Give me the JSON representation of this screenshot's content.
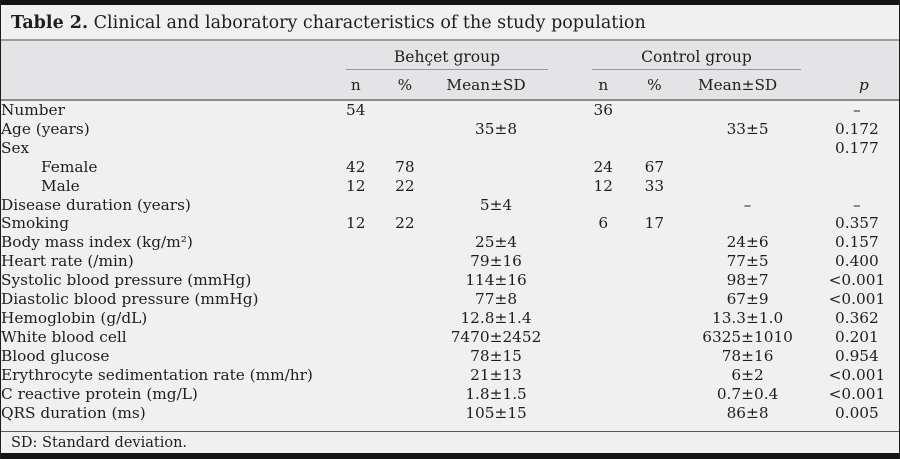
{
  "table": {
    "title_label": "Table 2.",
    "title_text": "Clinical and laboratory characteristics of the study population",
    "groups": [
      {
        "label": "Behçet group"
      },
      {
        "label": "Control group"
      }
    ],
    "column_headers": {
      "n": "n",
      "pct": "%",
      "mean": "Mean±SD",
      "p": "p"
    },
    "rows": [
      {
        "label": "Number",
        "indent": false,
        "b_n": "54",
        "b_pct": "",
        "b_mean": "",
        "c_n": "36",
        "c_pct": "",
        "c_mean": "",
        "p": "–"
      },
      {
        "label": "Age (years)",
        "indent": false,
        "b_n": "",
        "b_pct": "",
        "b_mean": "35±8",
        "c_n": "",
        "c_pct": "",
        "c_mean": "33±5",
        "p": "0.172"
      },
      {
        "label": "Sex",
        "indent": false,
        "b_n": "",
        "b_pct": "",
        "b_mean": "",
        "c_n": "",
        "c_pct": "",
        "c_mean": "",
        "p": "0.177"
      },
      {
        "label": "Female",
        "indent": true,
        "b_n": "42",
        "b_pct": "78",
        "b_mean": "",
        "c_n": "24",
        "c_pct": "67",
        "c_mean": "",
        "p": ""
      },
      {
        "label": "Male",
        "indent": true,
        "b_n": "12",
        "b_pct": "22",
        "b_mean": "",
        "c_n": "12",
        "c_pct": "33",
        "c_mean": "",
        "p": ""
      },
      {
        "label": "Disease duration (years)",
        "indent": false,
        "b_n": "",
        "b_pct": "",
        "b_mean": "5±4",
        "c_n": "",
        "c_pct": "",
        "c_mean": "–",
        "p": "–"
      },
      {
        "label": "Smoking",
        "indent": false,
        "b_n": "12",
        "b_pct": "22",
        "b_mean": "",
        "c_n": "6",
        "c_pct": "17",
        "c_mean": "",
        "p": "0.357"
      },
      {
        "label": "Body mass index (kg/m²)",
        "indent": false,
        "b_n": "",
        "b_pct": "",
        "b_mean": "25±4",
        "c_n": "",
        "c_pct": "",
        "c_mean": "24±6",
        "p": "0.157"
      },
      {
        "label": "Heart rate (/min)",
        "indent": false,
        "b_n": "",
        "b_pct": "",
        "b_mean": "79±16",
        "c_n": "",
        "c_pct": "",
        "c_mean": "77±5",
        "p": "0.400"
      },
      {
        "label": "Systolic blood pressure (mmHg)",
        "indent": false,
        "b_n": "",
        "b_pct": "",
        "b_mean": "114±16",
        "c_n": "",
        "c_pct": "",
        "c_mean": "98±7",
        "p": "<0.001"
      },
      {
        "label": "Diastolic blood pressure (mmHg)",
        "indent": false,
        "b_n": "",
        "b_pct": "",
        "b_mean": "77±8",
        "c_n": "",
        "c_pct": "",
        "c_mean": "67±9",
        "p": "<0.001"
      },
      {
        "label": "Hemoglobin (g/dL)",
        "indent": false,
        "b_n": "",
        "b_pct": "",
        "b_mean": "12.8±1.4",
        "c_n": "",
        "c_pct": "",
        "c_mean": "13.3±1.0",
        "p": "0.362"
      },
      {
        "label": "White blood cell",
        "indent": false,
        "b_n": "",
        "b_pct": "",
        "b_mean": "7470±2452",
        "c_n": "",
        "c_pct": "",
        "c_mean": "6325±1010",
        "p": "0.201"
      },
      {
        "label": "Blood glucose",
        "indent": false,
        "b_n": "",
        "b_pct": "",
        "b_mean": "78±15",
        "c_n": "",
        "c_pct": "",
        "c_mean": "78±16",
        "p": "0.954"
      },
      {
        "label": "Erythrocyte sedimentation rate (mm/hr)",
        "indent": false,
        "b_n": "",
        "b_pct": "",
        "b_mean": "21±13",
        "c_n": "",
        "c_pct": "",
        "c_mean": "6±2",
        "p": "<0.001"
      },
      {
        "label": "C reactive protein (mg/L)",
        "indent": false,
        "b_n": "",
        "b_pct": "",
        "b_mean": "1.8±1.5",
        "c_n": "",
        "c_pct": "",
        "c_mean": "0.7±0.4",
        "p": "<0.001"
      },
      {
        "label": "QRS duration (ms)",
        "indent": false,
        "b_n": "",
        "b_pct": "",
        "b_mean": "105±15",
        "c_n": "",
        "c_pct": "",
        "c_mean": "86±8",
        "p": "0.005"
      }
    ],
    "footnote": "SD: Standard deviation."
  }
}
